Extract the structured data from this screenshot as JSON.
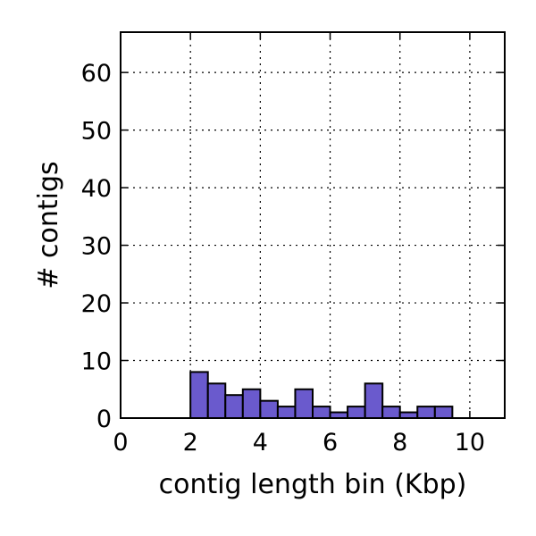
{
  "chart_data": {
    "type": "bar",
    "xlabel": "contig length bin (Kbp)",
    "ylabel": "# contigs",
    "xlim": [
      0,
      11
    ],
    "ylim": [
      0,
      67
    ],
    "xticks": [
      0,
      2,
      4,
      6,
      8,
      10
    ],
    "yticks": [
      0,
      10,
      20,
      30,
      40,
      50,
      60
    ],
    "grid": true,
    "bar_color": "#6a5acd",
    "bin_width": 0.5,
    "bins": [
      {
        "start": 0.0,
        "value": 0
      },
      {
        "start": 0.5,
        "value": 0
      },
      {
        "start": 1.0,
        "value": 0
      },
      {
        "start": 1.5,
        "value": 0
      },
      {
        "start": 2.0,
        "value": 8
      },
      {
        "start": 2.5,
        "value": 6
      },
      {
        "start": 3.0,
        "value": 4
      },
      {
        "start": 3.5,
        "value": 5
      },
      {
        "start": 4.0,
        "value": 3
      },
      {
        "start": 4.5,
        "value": 2
      },
      {
        "start": 5.0,
        "value": 5
      },
      {
        "start": 5.5,
        "value": 2
      },
      {
        "start": 6.0,
        "value": 1
      },
      {
        "start": 6.5,
        "value": 2
      },
      {
        "start": 7.0,
        "value": 6
      },
      {
        "start": 7.5,
        "value": 2
      },
      {
        "start": 8.0,
        "value": 1
      },
      {
        "start": 8.5,
        "value": 2
      },
      {
        "start": 9.0,
        "value": 2
      },
      {
        "start": 9.5,
        "value": 0
      },
      {
        "start": 10.0,
        "value": 0
      },
      {
        "start": 10.5,
        "value": 0
      }
    ]
  }
}
